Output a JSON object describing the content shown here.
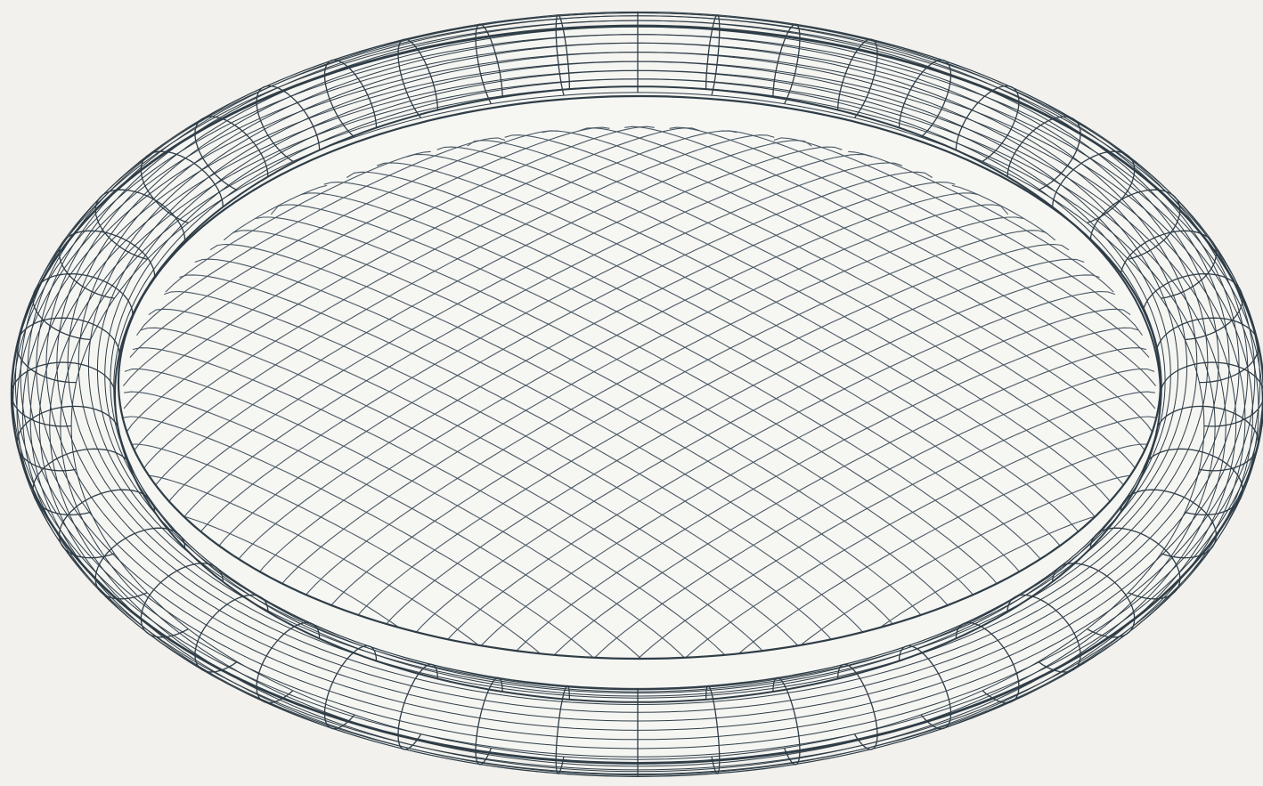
{
  "figure": {
    "subject": "wireframe-torus-with-dome-membrane",
    "colors": {
      "background": "#f2f1ed",
      "wire": "#2f3d47",
      "wire_light": "#4a5863",
      "surface": "#f5f5f2"
    },
    "ring": {
      "meridian_segments": 48,
      "tube_segments": 24
    },
    "dome": {
      "grid_lines_per_direction": 34
    }
  }
}
